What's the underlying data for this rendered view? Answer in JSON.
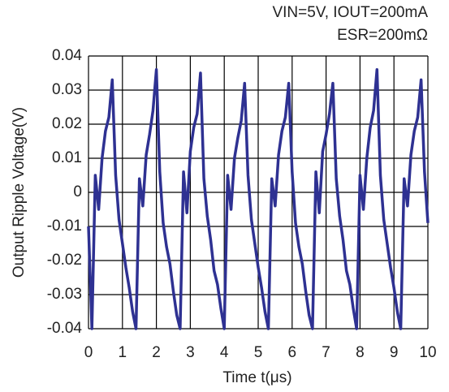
{
  "chart_data": {
    "type": "line",
    "annotations": [
      "VIN=5V, IOUT=200mA",
      "ESR=200mΩ"
    ],
    "x_label": "Time t(μs)",
    "y_label": "Output Ripple Voltage(V)",
    "xlim": [
      0,
      10
    ],
    "xticks": [
      0,
      1,
      2,
      3,
      4,
      5,
      6,
      7,
      8,
      9,
      10
    ],
    "ylim": [
      -0.04,
      0.04
    ],
    "yticks": [
      0.04,
      0.03,
      0.02,
      0.01,
      0,
      -0.01,
      -0.02,
      -0.03,
      -0.04
    ],
    "grid": true,
    "x": [
      0,
      0.1,
      0.2,
      0.3,
      0.4,
      0.5,
      0.6,
      0.7,
      0.8,
      0.9,
      1,
      1.1,
      1.2,
      1.3,
      1.4,
      1.5,
      1.6,
      1.7,
      1.8,
      1.9,
      2,
      2.1,
      2.2,
      2.3,
      2.4,
      2.5,
      2.6,
      2.7,
      2.8,
      2.9,
      3,
      3.1,
      3.2,
      3.3,
      3.4,
      3.5,
      3.6,
      3.7,
      3.8,
      3.9,
      4,
      4.1,
      4.2,
      4.3,
      4.4,
      4.5,
      4.6,
      4.7,
      4.8,
      4.9,
      5,
      5.1,
      5.2,
      5.3,
      5.4,
      5.5,
      5.6,
      5.7,
      5.8,
      5.9,
      6,
      6.1,
      6.2,
      6.3,
      6.4,
      6.5,
      6.6,
      6.7,
      6.8,
      6.9,
      7,
      7.1,
      7.2,
      7.3,
      7.4,
      7.5,
      7.6,
      7.7,
      7.8,
      7.9,
      8,
      8.1,
      8.2,
      8.3,
      8.4,
      8.5,
      8.6,
      8.7,
      8.8,
      8.9,
      9,
      9.1,
      9.2,
      9.3,
      9.4,
      9.5,
      9.6,
      9.7,
      9.8,
      9.9,
      10
    ],
    "series": [
      {
        "color": "#2e3192",
        "values": [
          -0.01,
          -0.04,
          0.005,
          -0.005,
          0.01,
          0.018,
          0.022,
          0.033,
          0.005,
          -0.008,
          -0.015,
          -0.022,
          -0.028,
          -0.035,
          -0.04,
          0.004,
          -0.004,
          0.011,
          0.017,
          0.024,
          0.036,
          0.006,
          -0.009,
          -0.016,
          -0.021,
          -0.029,
          -0.036,
          -0.04,
          0.006,
          -0.006,
          0.012,
          0.019,
          0.023,
          0.035,
          0.004,
          -0.007,
          -0.014,
          -0.023,
          -0.027,
          -0.034,
          -0.04,
          0.005,
          -0.005,
          0.01,
          0.016,
          0.021,
          0.032,
          0.005,
          -0.008,
          -0.015,
          -0.022,
          -0.028,
          -0.035,
          -0.04,
          0.004,
          -0.004,
          0.011,
          0.018,
          0.022,
          0.032,
          0.006,
          -0.009,
          -0.016,
          -0.021,
          -0.029,
          -0.036,
          -0.04,
          0.006,
          -0.006,
          0.012,
          0.017,
          0.023,
          0.032,
          0.004,
          -0.007,
          -0.014,
          -0.023,
          -0.027,
          -0.034,
          -0.04,
          0.005,
          -0.005,
          0.01,
          0.019,
          0.024,
          0.036,
          0.005,
          -0.008,
          -0.015,
          -0.022,
          -0.028,
          -0.035,
          -0.04,
          0.004,
          -0.004,
          0.011,
          0.018,
          0.022,
          0.033,
          0.006,
          -0.009
        ]
      }
    ]
  }
}
